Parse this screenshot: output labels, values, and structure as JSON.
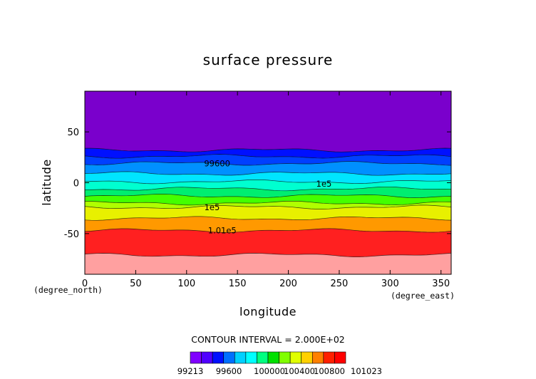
{
  "chart_data": {
    "type": "heatmap",
    "title": "surface pressure",
    "xlabel": "longitude",
    "ylabel": "latitude",
    "x_unit": "(degree_east)",
    "y_unit": "(degree_north)",
    "xlim": [
      0,
      360
    ],
    "ylim": [
      -90,
      90
    ],
    "x_ticks": [
      0,
      50,
      100,
      150,
      200,
      250,
      300,
      350
    ],
    "y_ticks": [
      -50,
      0,
      50
    ],
    "contour_interval_text": "CONTOUR INTERVAL = 2.000E+02",
    "grid": false,
    "colorbar": {
      "placement": "bottom",
      "min_label": "99213",
      "max_label": "101023",
      "tick_labels": [
        "99600",
        "100000",
        "100400",
        "100800"
      ],
      "colors": [
        "#8000ff",
        "#5000ff",
        "#0010ff",
        "#0070ff",
        "#00d0ff",
        "#00ffff",
        "#00ff80",
        "#00e000",
        "#80ff00",
        "#e0ff00",
        "#ffd000",
        "#ff8000",
        "#ff2000",
        "#ff0000"
      ]
    },
    "bands": [
      {
        "from_lat": 90,
        "to_lat": 32,
        "color": "#7a00cc"
      },
      {
        "from_lat": 32,
        "to_lat": 26,
        "color": "#0010ff"
      },
      {
        "from_lat": 26,
        "to_lat": 19,
        "color": "#0040ff"
      },
      {
        "from_lat": 19,
        "to_lat": 9,
        "color": "#0090ff"
      },
      {
        "from_lat": 9,
        "to_lat": 1,
        "color": "#00e5ff"
      },
      {
        "from_lat": 1,
        "to_lat": -6,
        "color": "#00ffd0"
      },
      {
        "from_lat": -6,
        "to_lat": -13,
        "color": "#00ee70"
      },
      {
        "from_lat": -13,
        "to_lat": -20,
        "color": "#44ff00"
      },
      {
        "from_lat": -20,
        "to_lat": -24,
        "color": "#b0ff00"
      },
      {
        "from_lat": -24,
        "to_lat": -35,
        "color": "#e8f000"
      },
      {
        "from_lat": -35,
        "to_lat": -47,
        "color": "#ff9900"
      },
      {
        "from_lat": -47,
        "to_lat": -71,
        "color": "#ff2020"
      },
      {
        "from_lat": -71,
        "to_lat": -90,
        "color": "#ffa0a0"
      }
    ],
    "contour_labels": [
      {
        "text": "99600",
        "lon": 130,
        "lat": 19
      },
      {
        "text": "1e5",
        "lon": 235,
        "lat": -1
      },
      {
        "text": "1e5",
        "lon": 125,
        "lat": -24
      },
      {
        "text": "1.01e5",
        "lon": 135,
        "lat": -47
      }
    ]
  }
}
